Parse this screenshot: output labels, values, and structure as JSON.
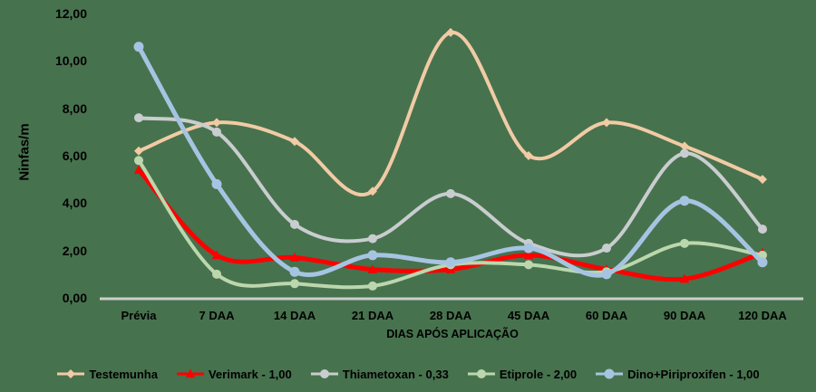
{
  "chart_data": {
    "type": "line",
    "title": "",
    "ylabel": "Ninfas/m",
    "xlabel": "DIAS APÓS APLICAÇÃO",
    "categories": [
      "Prévia",
      "7 DAA",
      "14 DAA",
      "21 DAA",
      "28 DAA",
      "45 DAA",
      "60 DAA",
      "90 DAA",
      "120 DAA"
    ],
    "y_ticks": [
      "0,00",
      "2,00",
      "4,00",
      "6,00",
      "8,00",
      "10,00",
      "12,00"
    ],
    "ylim": [
      0,
      12
    ],
    "grid": false,
    "smooth_lines": true,
    "legend_position": "bottom",
    "series": [
      {
        "name": "Testemunha",
        "color": "#F1CBA5",
        "marker": "diamond",
        "marker_size": 5,
        "stroke_width": 4,
        "values": [
          6.2,
          7.4,
          6.6,
          4.5,
          11.2,
          6.0,
          7.4,
          6.4,
          5.0
        ]
      },
      {
        "name": "Verimark - 1,00",
        "color": "#FF0000",
        "marker": "triangle",
        "marker_size": 5.5,
        "stroke_width": 5,
        "values": [
          5.4,
          1.8,
          1.7,
          1.2,
          1.2,
          1.8,
          1.2,
          0.8,
          1.9
        ]
      },
      {
        "name": "Thiametoxan - 0,33",
        "color": "#C9CDCF",
        "marker": "circle",
        "marker_size": 5,
        "stroke_width": 4,
        "values": [
          7.6,
          7.0,
          3.1,
          2.5,
          4.4,
          2.3,
          2.1,
          6.1,
          2.9
        ]
      },
      {
        "name": "Etiprole - 2,00",
        "color": "#BCD7AD",
        "marker": "circle",
        "marker_size": 5,
        "stroke_width": 4,
        "values": [
          5.8,
          1.0,
          0.6,
          0.5,
          1.4,
          1.4,
          1.1,
          2.3,
          1.8
        ]
      },
      {
        "name": "Dino+Piriproxifen - 1,00",
        "color": "#A6C4E2",
        "marker": "circle",
        "marker_size": 5.5,
        "stroke_width": 5,
        "values": [
          10.6,
          4.8,
          1.1,
          1.8,
          1.5,
          2.1,
          1.0,
          4.1,
          1.5
        ]
      }
    ]
  },
  "colors": {
    "background": "#47724E",
    "axis_line": "#CBCFCA",
    "text": "#000000"
  }
}
